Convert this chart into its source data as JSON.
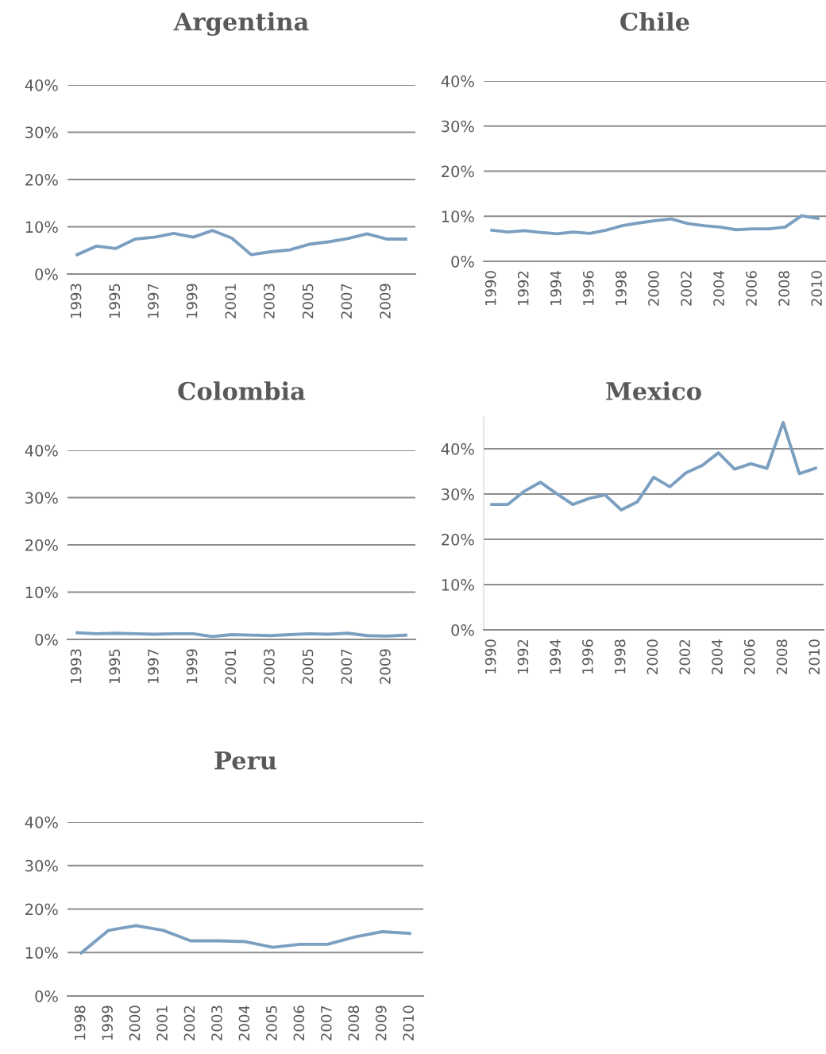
{
  "chart_data": [
    {
      "type": "line",
      "title": "Argentina",
      "categories": [
        "1993",
        null,
        "1995",
        null,
        "1997",
        null,
        "1999",
        null,
        "2001",
        null,
        "2003",
        null,
        "2005",
        null,
        "2007",
        null,
        "2009",
        null
      ],
      "series": [
        {
          "color": "#7a9fc0",
          "values": [
            4.1,
            5.9,
            5.4,
            7.4,
            7.8,
            8.6,
            7.8,
            9.2,
            7.6,
            4.1,
            4.7,
            5.1,
            6.3,
            6.8,
            7.5,
            8.5,
            7.4,
            7.4
          ]
        }
      ],
      "ylim": [
        0,
        40
      ],
      "yticks": [
        {
          "value": 0,
          "label": "0%"
        },
        {
          "value": 10,
          "label": "10%"
        },
        {
          "value": 20,
          "label": "20%"
        },
        {
          "value": 30,
          "label": "30%"
        },
        {
          "value": 40,
          "label": "40%"
        }
      ],
      "grid": "y",
      "marker": "none"
    },
    {
      "type": "line",
      "title": "Chile",
      "categories": [
        "1990",
        null,
        "1992",
        null,
        "1994",
        null,
        "1996",
        null,
        "1998",
        null,
        "2000",
        null,
        "2002",
        null,
        "2004",
        null,
        "2006",
        null,
        "2008",
        null,
        "2010"
      ],
      "series": [
        {
          "color": "#7a9fc0",
          "values": [
            6.9,
            6.5,
            6.8,
            6.4,
            6.1,
            6.5,
            6.2,
            6.9,
            7.9,
            8.5,
            9.0,
            9.4,
            8.4,
            7.9,
            7.6,
            7.0,
            7.2,
            7.2,
            7.6,
            10.1,
            9.5
          ]
        }
      ],
      "ylim": [
        0,
        40
      ],
      "yticks": [
        {
          "value": 0,
          "label": "0%"
        },
        {
          "value": 10,
          "label": "10%"
        },
        {
          "value": 20,
          "label": "20%"
        },
        {
          "value": 30,
          "label": "30%"
        },
        {
          "value": 40,
          "label": "40%"
        }
      ],
      "grid": "y",
      "marker": "none"
    },
    {
      "type": "line",
      "title": "Colombia",
      "categories": [
        "1993",
        null,
        "1995",
        null,
        "1997",
        null,
        "1999",
        null,
        "2001",
        null,
        "2003",
        null,
        "2005",
        null,
        "2007",
        null,
        "2009",
        null
      ],
      "series": [
        {
          "color": "#7a9fc0",
          "values": [
            1.4,
            1.2,
            1.3,
            1.2,
            1.1,
            1.2,
            1.2,
            0.6,
            1.0,
            0.9,
            0.8,
            1.0,
            1.2,
            1.1,
            1.3,
            0.8,
            0.7,
            0.9
          ]
        }
      ],
      "ylim": [
        0,
        40
      ],
      "yticks": [
        {
          "value": 0,
          "label": "0%"
        },
        {
          "value": 10,
          "label": "10%"
        },
        {
          "value": 20,
          "label": "20%"
        },
        {
          "value": 30,
          "label": "30%"
        },
        {
          "value": 40,
          "label": "40%"
        }
      ],
      "grid": "y",
      "marker": "none"
    },
    {
      "type": "line",
      "title": "Mexico",
      "categories": [
        "1990",
        null,
        "1992",
        null,
        "1994",
        null,
        "1996",
        null,
        "1998",
        null,
        "2000",
        null,
        "2002",
        null,
        "2004",
        null,
        "2006",
        null,
        "2008",
        null,
        "2010"
      ],
      "series": [
        {
          "color": "#7a9fc0",
          "values": [
            27.7,
            27.7,
            30.6,
            32.6,
            30.1,
            27.7,
            29.0,
            29.8,
            26.5,
            28.3,
            33.7,
            31.6,
            34.7,
            36.3,
            39.1,
            35.5,
            36.7,
            35.7,
            45.8,
            34.5,
            35.7
          ]
        }
      ],
      "ylim": [
        0,
        47
      ],
      "yticks": [
        {
          "value": 0,
          "label": "0%"
        },
        {
          "value": 10,
          "label": "10%"
        },
        {
          "value": 20,
          "label": "20%"
        },
        {
          "value": 30,
          "label": "30%"
        },
        {
          "value": 40,
          "label": "40%"
        }
      ],
      "grid": "y",
      "marker": "none"
    },
    {
      "type": "line",
      "title": "Peru",
      "categories": [
        "1998",
        "1999",
        "2000",
        "2001",
        "2002",
        "2003",
        "2004",
        "2005",
        "2006",
        "2007",
        "2008",
        "2009",
        "2010"
      ],
      "series": [
        {
          "color": "#7a9fc0",
          "values": [
            9.9,
            15.1,
            16.2,
            15.1,
            12.7,
            12.7,
            12.5,
            11.2,
            11.9,
            11.9,
            13.6,
            14.8,
            14.4
          ]
        }
      ],
      "ylim": [
        0,
        40
      ],
      "yticks": [
        {
          "value": 0,
          "label": "0%"
        },
        {
          "value": 10,
          "label": "10%"
        },
        {
          "value": 20,
          "label": "20%"
        },
        {
          "value": 30,
          "label": "30%"
        },
        {
          "value": 40,
          "label": "40%"
        }
      ],
      "grid": "y",
      "marker": "none"
    }
  ]
}
